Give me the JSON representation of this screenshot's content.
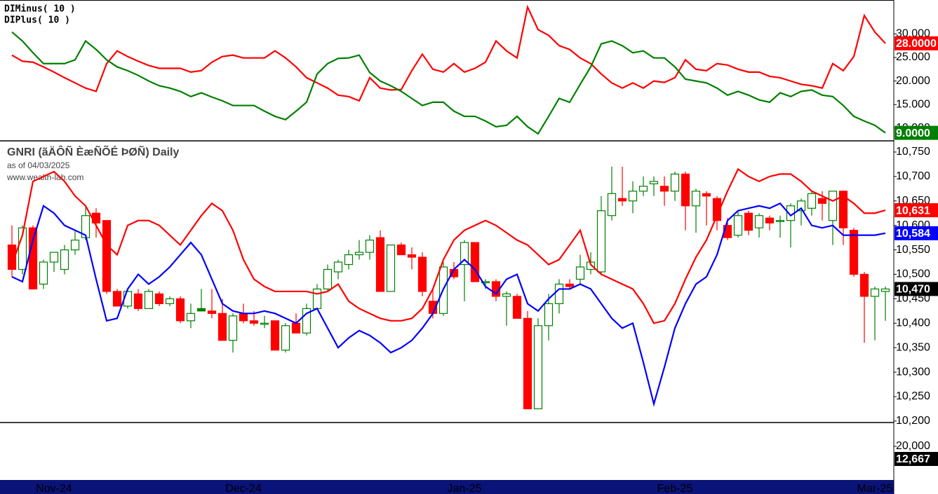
{
  "chart_data": [
    {
      "type": "line",
      "series": [
        {
          "name": "DIMinus( 10 )",
          "color": "#ff0000",
          "last_label": "28.0000",
          "values": [
            25.5,
            24.2,
            24.0,
            23.0,
            21.9,
            20.7,
            19.6,
            18.5,
            17.8,
            23.7,
            26.4,
            25.2,
            24.2,
            23.3,
            22.7,
            22.7,
            22.7,
            21.9,
            22.2,
            24.0,
            25.2,
            25.5,
            24.9,
            24.9,
            24.9,
            26.4,
            24.9,
            23.0,
            20.7,
            19.6,
            18.5,
            17.0,
            16.7,
            15.8,
            20.7,
            18.5,
            18.1,
            18.2,
            22.2,
            25.7,
            22.5,
            21.9,
            23.7,
            21.9,
            22.7,
            24.0,
            28.5,
            26.4,
            24.9,
            35.7,
            30.9,
            29.7,
            27.5,
            26.7,
            24.9,
            23.7,
            21.5,
            19.6,
            18.5,
            19.6,
            18.5,
            20.0,
            19.7,
            20.7,
            24.5,
            22.5,
            22.2,
            23.7,
            23.4,
            22.5,
            21.9,
            21.9,
            21.0,
            20.7,
            20.0,
            19.3,
            19.0,
            18.5,
            23.7,
            22.2,
            25.2,
            33.9,
            30.4,
            28.0
          ]
        },
        {
          "name": "DIPlus( 10 )",
          "color": "#008000",
          "last_label": "9.0000",
          "values": [
            30.4,
            28.5,
            26.0,
            23.7,
            23.7,
            23.7,
            24.5,
            28.5,
            26.7,
            24.5,
            23.0,
            22.2,
            21.2,
            20.0,
            19.0,
            18.5,
            17.8,
            16.7,
            17.5,
            16.6,
            15.8,
            14.8,
            14.8,
            14.8,
            13.6,
            12.5,
            11.8,
            13.6,
            15.5,
            21.5,
            23.7,
            24.8,
            24.9,
            25.5,
            21.8,
            20.0,
            19.0,
            17.8,
            16.3,
            14.8,
            15.5,
            15.5,
            13.6,
            12.5,
            12.5,
            11.5,
            10.3,
            10.6,
            12.5,
            10.3,
            8.8,
            12.5,
            16.3,
            15.5,
            19.3,
            23.0,
            27.9,
            28.5,
            27.5,
            26.0,
            26.4,
            24.9,
            24.9,
            23.0,
            20.4,
            20.0,
            19.6,
            18.5,
            17.0,
            17.8,
            17.0,
            16.0,
            15.5,
            17.5,
            16.7,
            17.8,
            18.1,
            17.0,
            16.7,
            14.8,
            12.5,
            11.5,
            10.6,
            9.0
          ]
        }
      ],
      "ylim": [
        7.3,
        37.2
      ],
      "yticks": [
        {
          "value": 10,
          "label": "10.000"
        },
        {
          "value": 15,
          "label": "15.000"
        },
        {
          "value": 20,
          "label": "20.000"
        },
        {
          "value": 25,
          "label": "25.000"
        },
        {
          "value": 30,
          "label": "30.000"
        }
      ]
    },
    {
      "type": "candlestick",
      "title": "GNRI (ãÄÔÑ ÈæÑÕÉ ÞØÑ) Daily",
      "subtitle": "as of 04/03/2025",
      "source": "www.wealth-lab.com",
      "categories": [
        null,
        null,
        null,
        null,
        "Nov-24",
        null,
        null,
        null,
        null,
        null,
        null,
        null,
        null,
        null,
        null,
        null,
        null,
        null,
        null,
        null,
        null,
        null,
        "Dec-24",
        null,
        null,
        null,
        null,
        null,
        null,
        null,
        null,
        null,
        null,
        null,
        null,
        null,
        null,
        null,
        null,
        null,
        null,
        null,
        null,
        "Jan-25",
        null,
        null,
        null,
        null,
        null,
        null,
        null,
        null,
        null,
        null,
        null,
        null,
        null,
        null,
        null,
        null,
        null,
        null,
        null,
        "Feb-25",
        null,
        null,
        null,
        null,
        null,
        null,
        null,
        null,
        null,
        null,
        null,
        null,
        null,
        null,
        null,
        null,
        null,
        null,
        "Mar-25",
        null
      ],
      "open": [
        10560,
        10510,
        10595,
        10480,
        10525,
        10510,
        10550,
        10575,
        10625,
        10610,
        10465,
        10435,
        10460,
        10430,
        10460,
        10440,
        10450,
        10405,
        10430,
        10425,
        10420,
        10365,
        10420,
        10405,
        10400,
        10405,
        10345,
        10400,
        10380,
        10430,
        10470,
        10505,
        10520,
        10540,
        10545,
        10575,
        10465,
        10560,
        10540,
        10535,
        10445,
        10420,
        10510,
        10520,
        10565,
        10485,
        10485,
        10455,
        10455,
        10410,
        10225,
        10395,
        10440,
        10480,
        10490,
        10510,
        10505,
        10620,
        10655,
        10650,
        10670,
        10685,
        10680,
        10670,
        10705,
        10640,
        10665,
        10655,
        10600,
        10580,
        10625,
        10595,
        10615,
        10610,
        10610,
        10630,
        10635,
        10655,
        10610,
        10670,
        10590,
        10500,
        10455,
        10465
      ],
      "high": [
        10600,
        10600,
        10600,
        10530,
        10545,
        10560,
        10590,
        10640,
        10635,
        10610,
        10470,
        10470,
        10470,
        10470,
        10465,
        10455,
        10455,
        10440,
        10470,
        10470,
        10450,
        10420,
        10440,
        10425,
        10415,
        10405,
        10400,
        10420,
        10440,
        10480,
        10520,
        10530,
        10550,
        10570,
        10580,
        10590,
        10560,
        10565,
        10555,
        10545,
        10470,
        10525,
        10525,
        10570,
        10565,
        10490,
        10490,
        10465,
        10460,
        10425,
        10410,
        10460,
        10490,
        10490,
        10540,
        10545,
        10660,
        10720,
        10720,
        10690,
        10700,
        10700,
        10700,
        10710,
        10710,
        10675,
        10670,
        10660,
        10615,
        10630,
        10630,
        10625,
        10620,
        10620,
        10645,
        10655,
        10670,
        10670,
        10670,
        10670,
        10595,
        10505,
        10475,
        10475
      ],
      "low": [
        10495,
        10500,
        10470,
        10470,
        10505,
        10500,
        10540,
        10570,
        10575,
        10460,
        10435,
        10430,
        10425,
        10430,
        10435,
        10435,
        10400,
        10390,
        10425,
        10410,
        10365,
        10340,
        10400,
        10395,
        10390,
        10345,
        10340,
        10380,
        10375,
        10430,
        10465,
        10490,
        10510,
        10530,
        10530,
        10465,
        10465,
        10540,
        10510,
        10455,
        10410,
        10415,
        10490,
        10445,
        10485,
        10470,
        10445,
        10395,
        10410,
        10225,
        10225,
        10365,
        10420,
        10470,
        10480,
        10500,
        10500,
        10610,
        10640,
        10625,
        10660,
        10660,
        10640,
        10650,
        10590,
        10585,
        10600,
        10590,
        10570,
        10575,
        10580,
        10575,
        10590,
        10575,
        10555,
        10600,
        10620,
        10610,
        10560,
        10560,
        10495,
        10360,
        10365,
        10405
      ],
      "close": [
        10510,
        10595,
        10470,
        10525,
        10545,
        10550,
        10570,
        10620,
        10605,
        10465,
        10435,
        10465,
        10430,
        10465,
        10440,
        10450,
        10405,
        10420,
        10425,
        10420,
        10365,
        10415,
        10405,
        10400,
        10400,
        10345,
        10395,
        10380,
        10430,
        10470,
        10510,
        10525,
        10540,
        10545,
        10570,
        10465,
        10560,
        10540,
        10535,
        10465,
        10420,
        10515,
        10495,
        10565,
        10485,
        10485,
        10455,
        10460,
        10410,
        10225,
        10395,
        10440,
        10480,
        10475,
        10515,
        10525,
        10630,
        10665,
        10650,
        10670,
        10680,
        10690,
        10670,
        10705,
        10640,
        10670,
        10660,
        10610,
        10575,
        10620,
        10590,
        10620,
        10605,
        10610,
        10640,
        10650,
        10665,
        10645,
        10670,
        10595,
        10500,
        10455,
        10470,
        10470
      ],
      "close_label": "10,470",
      "up_color": "#008000",
      "down_color": "#ff0000",
      "series": [
        {
          "color": "#ff0000",
          "last_label": "10,631",
          "values": [
            10520,
            10580,
            10690,
            10700,
            10710,
            10690,
            10660,
            10640,
            10600,
            10560,
            10540,
            10600,
            10610,
            10610,
            10600,
            10580,
            10560,
            10590,
            10620,
            10645,
            10630,
            10590,
            10530,
            10490,
            10475,
            10465,
            10465,
            10465,
            10465,
            10460,
            10465,
            10480,
            10445,
            10430,
            10420,
            10410,
            10405,
            10405,
            10410,
            10430,
            10470,
            10530,
            10570,
            10590,
            10600,
            10610,
            10600,
            10585,
            10570,
            10560,
            10540,
            10520,
            10530,
            10560,
            10590,
            10520,
            10500,
            10490,
            10480,
            10470,
            10440,
            10400,
            10405,
            10440,
            10490,
            10535,
            10570,
            10620,
            10670,
            10715,
            10700,
            10690,
            10700,
            10705,
            10705,
            10690,
            10670,
            10660,
            10650,
            10660,
            10645,
            10625,
            10625,
            10631
          ]
        },
        {
          "color": "#0000ff",
          "last_label": "10,584",
          "values": [
            10495,
            10485,
            10570,
            10640,
            10625,
            10600,
            10590,
            10580,
            10490,
            10405,
            10410,
            10470,
            10500,
            10480,
            10495,
            10515,
            10540,
            10565,
            10540,
            10490,
            10440,
            10425,
            10420,
            10420,
            10425,
            10420,
            10410,
            10400,
            10420,
            10430,
            10390,
            10350,
            10370,
            10385,
            10375,
            10360,
            10340,
            10350,
            10365,
            10390,
            10420,
            10470,
            10510,
            10530,
            10510,
            10475,
            10460,
            10490,
            10500,
            10440,
            10425,
            10450,
            10470,
            10470,
            10480,
            10470,
            10440,
            10410,
            10390,
            10400,
            10320,
            10235,
            10310,
            10390,
            10440,
            10480,
            10495,
            10540,
            10610,
            10630,
            10635,
            10640,
            10635,
            10645,
            10620,
            10635,
            10600,
            10595,
            10600,
            10580,
            10580,
            10580,
            10580,
            10584
          ]
        }
      ],
      "ylim": [
        10197,
        10770
      ],
      "yticks": [
        {
          "value": 10200,
          "label": "10,200"
        },
        {
          "value": 10250,
          "label": "10,250"
        },
        {
          "value": 10300,
          "label": "10,300"
        },
        {
          "value": 10350,
          "label": "10,350"
        },
        {
          "value": 10400,
          "label": "10,400"
        },
        {
          "value": 10450,
          "label": "10,450"
        },
        {
          "value": 10500,
          "label": "10,500"
        },
        {
          "value": 10550,
          "label": "10,550"
        },
        {
          "value": 10600,
          "label": "10,600"
        },
        {
          "value": 10650,
          "label": "10,650"
        },
        {
          "value": 10700,
          "label": "10,700"
        },
        {
          "value": 10750,
          "label": "10,750"
        }
      ]
    },
    {
      "type": "volume",
      "last_value": 12667,
      "last_label": "12,667",
      "ylim": [
        400,
        33900
      ],
      "yticks": [
        {
          "value": 20000,
          "label": "20,000"
        }
      ]
    }
  ]
}
